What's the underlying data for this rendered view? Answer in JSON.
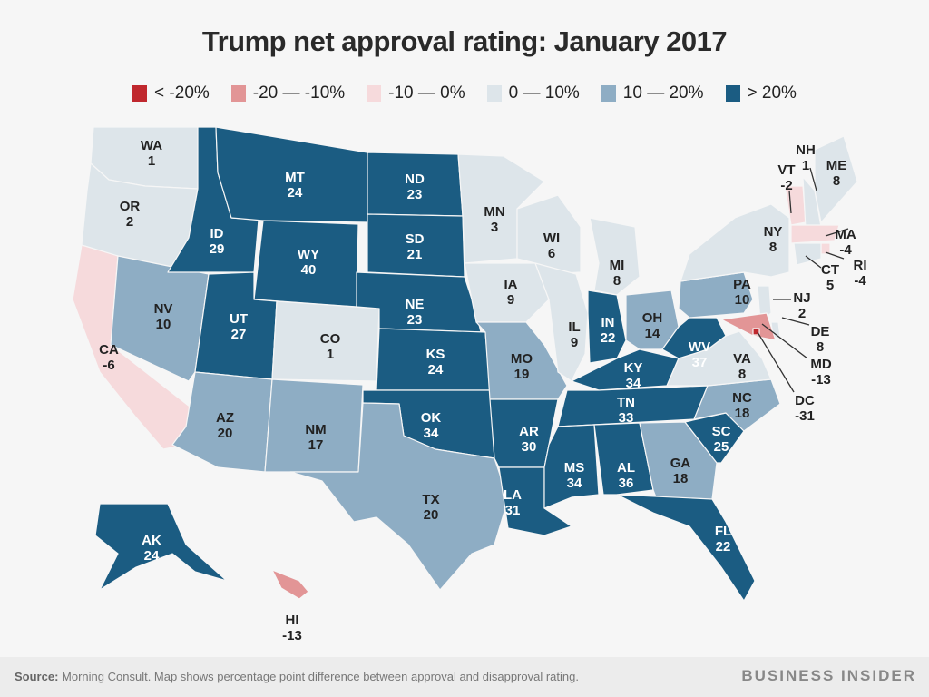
{
  "title": "Trump net approval rating: January 2017",
  "legend": [
    {
      "label": "< -20%",
      "color": "#c0282e"
    },
    {
      "label": "-20 — -10%",
      "color": "#e29596"
    },
    {
      "label": "-10 — 0%",
      "color": "#f6dadc"
    },
    {
      "label": "0 — 10%",
      "color": "#dde5ea"
    },
    {
      "label": "10 — 20%",
      "color": "#8eadc4"
    },
    {
      "label": "> 20%",
      "color": "#1b5c82"
    }
  ],
  "footer": {
    "source_label": "Source:",
    "source_text": "Morning Consult. Map shows percentage point difference between approval and disapproval rating.",
    "brand": "BUSINESS INSIDER"
  },
  "chart_data": {
    "type": "choropleth",
    "title": "Trump net approval rating: January 2017",
    "unit": "percentage points (approval minus disapproval)",
    "bins": [
      {
        "label": "< -20%",
        "max": -20
      },
      {
        "label": "-20 — -10%",
        "min": -20,
        "max": -10
      },
      {
        "label": "-10 — 0%",
        "min": -10,
        "max": 0
      },
      {
        "label": "0 — 10%",
        "min": 0,
        "max": 10
      },
      {
        "label": "10 — 20%",
        "min": 10,
        "max": 20
      },
      {
        "label": "> 20%",
        "min": 20
      }
    ],
    "states": [
      {
        "code": "WA",
        "value": 1
      },
      {
        "code": "OR",
        "value": 2
      },
      {
        "code": "CA",
        "value": -6
      },
      {
        "code": "NV",
        "value": 10
      },
      {
        "code": "ID",
        "value": 29
      },
      {
        "code": "MT",
        "value": 24
      },
      {
        "code": "WY",
        "value": 40
      },
      {
        "code": "UT",
        "value": 27
      },
      {
        "code": "AZ",
        "value": 20
      },
      {
        "code": "CO",
        "value": 1
      },
      {
        "code": "NM",
        "value": 17
      },
      {
        "code": "ND",
        "value": 23
      },
      {
        "code": "SD",
        "value": 21
      },
      {
        "code": "NE",
        "value": 23
      },
      {
        "code": "KS",
        "value": 24
      },
      {
        "code": "OK",
        "value": 34
      },
      {
        "code": "TX",
        "value": 20
      },
      {
        "code": "MN",
        "value": 3
      },
      {
        "code": "IA",
        "value": 9
      },
      {
        "code": "MO",
        "value": 19
      },
      {
        "code": "AR",
        "value": 30
      },
      {
        "code": "LA",
        "value": 31
      },
      {
        "code": "WI",
        "value": 6
      },
      {
        "code": "IL",
        "value": 9
      },
      {
        "code": "MI",
        "value": 8
      },
      {
        "code": "IN",
        "value": 22
      },
      {
        "code": "OH",
        "value": 14
      },
      {
        "code": "KY",
        "value": 34
      },
      {
        "code": "TN",
        "value": 33
      },
      {
        "code": "MS",
        "value": 34
      },
      {
        "code": "AL",
        "value": 36
      },
      {
        "code": "GA",
        "value": 18
      },
      {
        "code": "FL",
        "value": 22
      },
      {
        "code": "SC",
        "value": 25
      },
      {
        "code": "NC",
        "value": 18
      },
      {
        "code": "VA",
        "value": 8
      },
      {
        "code": "WV",
        "value": 37
      },
      {
        "code": "PA",
        "value": 10
      },
      {
        "code": "NY",
        "value": 8
      },
      {
        "code": "VT",
        "value": -2
      },
      {
        "code": "NH",
        "value": 1
      },
      {
        "code": "ME",
        "value": 8
      },
      {
        "code": "MA",
        "value": -4
      },
      {
        "code": "RI",
        "value": -4
      },
      {
        "code": "CT",
        "value": 5
      },
      {
        "code": "NJ",
        "value": 2
      },
      {
        "code": "DE",
        "value": 8
      },
      {
        "code": "MD",
        "value": -13
      },
      {
        "code": "DC",
        "value": -31
      },
      {
        "code": "AK",
        "value": 24
      },
      {
        "code": "HI",
        "value": -13
      }
    ]
  }
}
